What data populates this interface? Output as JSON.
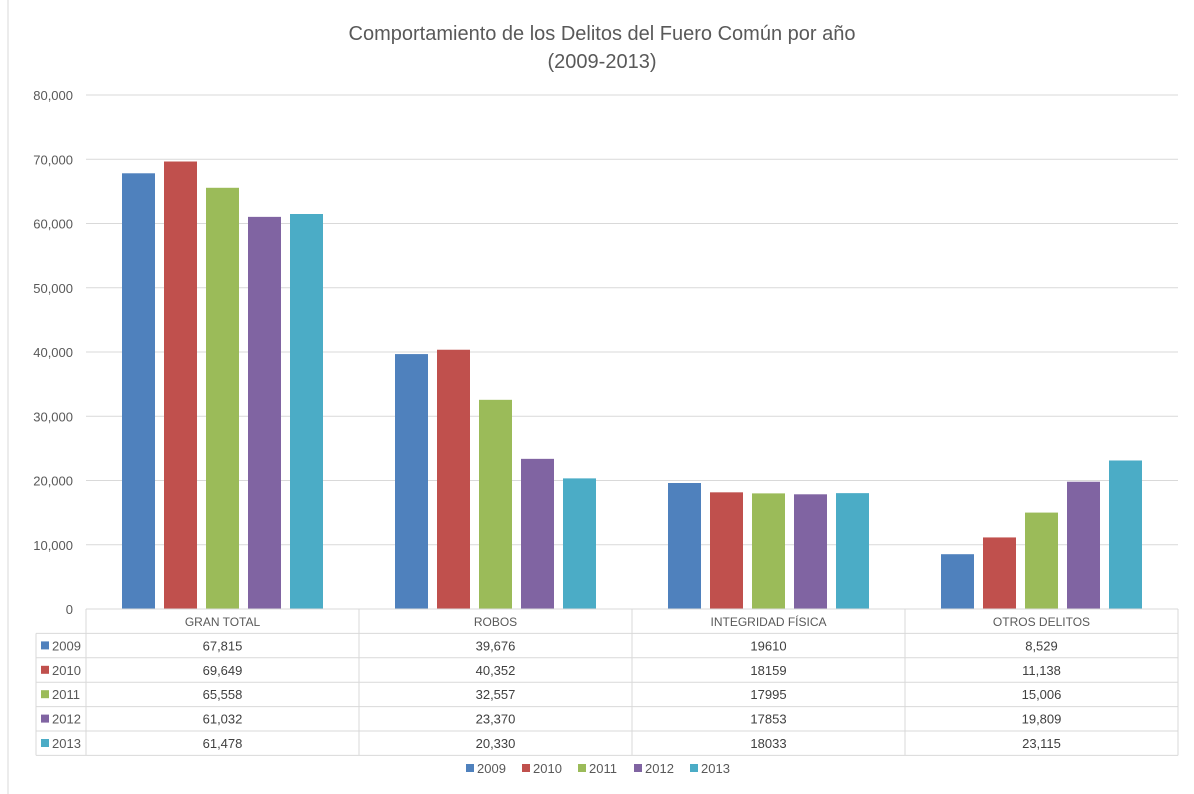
{
  "chart_data": {
    "type": "bar",
    "title": [
      "Comportamiento de los Delitos del Fuero Común por año",
      "(2009-2013)"
    ],
    "categories": [
      "GRAN TOTAL",
      "ROBOS",
      "INTEGRIDAD FÍSICA",
      "OTROS DELITOS"
    ],
    "series": [
      {
        "name": "2009",
        "color": "#4F81BD",
        "values": [
          67815,
          39676,
          19610,
          8529
        ],
        "labels": [
          "67,815",
          "39,676",
          "19610",
          "8,529"
        ]
      },
      {
        "name": "2010",
        "color": "#C0504D",
        "values": [
          69649,
          40352,
          18159,
          11138
        ],
        "labels": [
          "69,649",
          "40,352",
          "18159",
          "11,138"
        ]
      },
      {
        "name": "2011",
        "color": "#9BBB59",
        "values": [
          65558,
          32557,
          17995,
          15006
        ],
        "labels": [
          "65,558",
          "32,557",
          "17995",
          "15,006"
        ]
      },
      {
        "name": "2012",
        "color": "#8064A2",
        "values": [
          61032,
          23370,
          17853,
          19809
        ],
        "labels": [
          "61,032",
          "23,370",
          "17853",
          "19,809"
        ]
      },
      {
        "name": "2013",
        "color": "#4BACC6",
        "values": [
          61478,
          20330,
          18033,
          23115
        ],
        "labels": [
          "61,478",
          "20,330",
          "18033",
          "23,115"
        ]
      }
    ],
    "ylim": [
      0,
      80000
    ],
    "yticks": [
      "0",
      "10,000",
      "20,000",
      "30,000",
      "40,000",
      "50,000",
      "60,000",
      "70,000",
      "80,000"
    ],
    "grid": true,
    "legend": "bottom",
    "data_table": true
  }
}
